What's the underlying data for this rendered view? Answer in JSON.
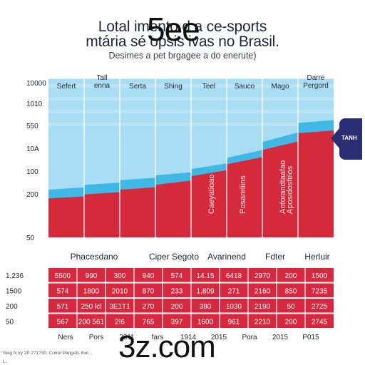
{
  "header": {
    "title_line1": "Lotal imento d     a ce-sports",
    "title_line2": "mtária sé opsis   ivas no Brasil.",
    "subtitle": "Desimes a pet brgagee a do enerute)",
    "overlay_top": "5ee",
    "overlay_bottom": "3z.com",
    "footnote1": "Seig N ky 2P 2?1?30. Cotrol Pangets thel...",
    "footnote2": "l..."
  },
  "side_tab": {
    "label": "TANH",
    "color": "#2a2f73"
  },
  "colors": {
    "red": "#d42a3c",
    "blue": "#3fb8e6",
    "sky": "#a9ddf3",
    "table_red": "#d6283e"
  },
  "chart_data": {
    "type": "area",
    "title": "",
    "categories": [
      "Sefert",
      "Tall\nenna",
      "Serta",
      "Shing",
      "Teel",
      "Sauco",
      "Mago",
      "Darre\nPergord"
    ],
    "y_ticks": [
      "10000",
      "1010",
      "550",
      "10A",
      "100",
      "200",
      "50"
    ],
    "series": [
      {
        "values": [
          0.245,
          0.27,
          0.3,
          0.33,
          0.385,
          0.46,
          0.55,
          0.655
        ]
      },
      {
        "values": [
          0.3,
          0.33,
          0.36,
          0.39,
          0.43,
          0.5,
          0.6,
          0.72
        ]
      }
    ],
    "vertical_labels": [
      "Caeyatioao",
      "Posareliins",
      "Anforandtaafao",
      "Aposidosfiilos"
    ],
    "row_header": [
      "Phacesdano",
      "Ciper Segoto",
      "Avarinend",
      "Fdter",
      "Herluir"
    ],
    "table": {
      "row_labels": [
        "1,236",
        "1500",
        "200",
        "50"
      ],
      "rows": [
        [
          "5500",
          "990",
          "300",
          "940",
          "574",
          "14.15",
          "6418",
          "2970",
          "200",
          "1500"
        ],
        [
          "574",
          "1800",
          "2010",
          "870",
          "233",
          "1,809",
          "271",
          "2160",
          "850",
          "7235"
        ],
        [
          "571",
          "250 lcl",
          "3E1T1",
          "270",
          "200",
          "380",
          "1030",
          "2190",
          "50",
          "2725"
        ],
        [
          "567",
          "200 561",
          "2!6",
          "765",
          "397",
          "1600",
          "961",
          "2210",
          "200",
          "2745"
        ]
      ]
    },
    "bottom_labels": [
      "Ners",
      "Pors",
      "2311",
      "fars",
      "1914",
      "2015",
      "Pora",
      "2015",
      "P015"
    ]
  }
}
